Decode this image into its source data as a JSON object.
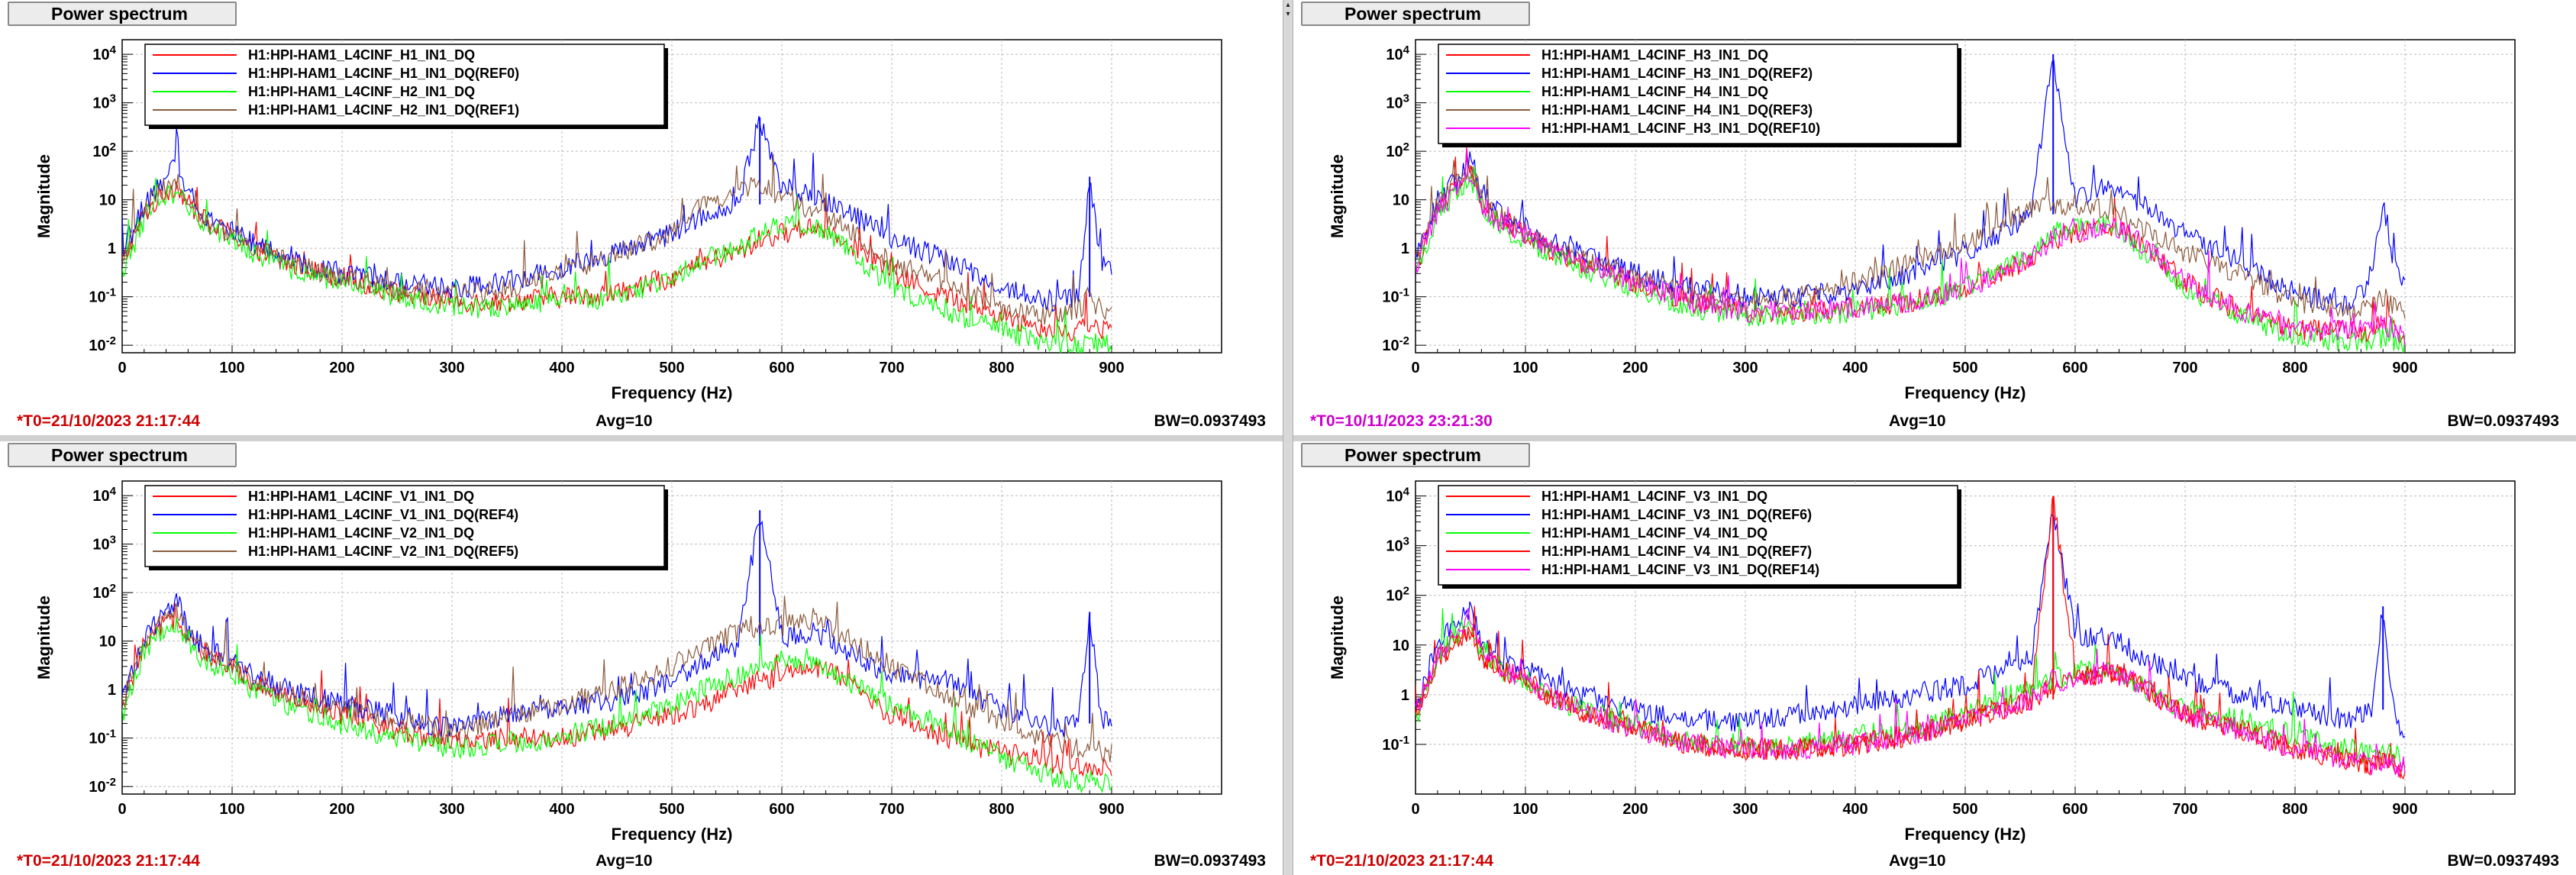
{
  "window": {
    "tab_label": "Power spectrum"
  },
  "colors": {
    "red": "#ff0000",
    "blue": "#0000ff",
    "green": "#00ff00",
    "brown": "#8b5a3c",
    "magenta": "#ff00ff"
  },
  "panels": [
    {
      "title": "Power spectrum",
      "t0": "*T0=21/10/2023 21:17:44",
      "t0_color": "#cc0000",
      "avg": "Avg=10",
      "bw": "BW=0.0937493",
      "legend": [
        {
          "name": "H1:HPI-HAM1_L4CINF_H1_IN1_DQ",
          "color": "#ff0000"
        },
        {
          "name": "H1:HPI-HAM1_L4CINF_H1_IN1_DQ(REF0)",
          "color": "#0000ff"
        },
        {
          "name": "H1:HPI-HAM1_L4CINF_H2_IN1_DQ",
          "color": "#00ff00"
        },
        {
          "name": "H1:HPI-HAM1_L4CINF_H2_IN1_DQ(REF1)",
          "color": "#8b5a3c"
        }
      ]
    },
    {
      "title": "Power spectrum",
      "t0": "*T0=10/11/2023 23:21:30",
      "t0_color": "#cc00cc",
      "avg": "Avg=10",
      "bw": "BW=0.0937493",
      "legend": [
        {
          "name": "H1:HPI-HAM1_L4CINF_H3_IN1_DQ",
          "color": "#ff0000"
        },
        {
          "name": "H1:HPI-HAM1_L4CINF_H3_IN1_DQ(REF2)",
          "color": "#0000ff"
        },
        {
          "name": "H1:HPI-HAM1_L4CINF_H4_IN1_DQ",
          "color": "#00ff00"
        },
        {
          "name": "H1:HPI-HAM1_L4CINF_H4_IN1_DQ(REF3)",
          "color": "#8b5a3c"
        },
        {
          "name": "H1:HPI-HAM1_L4CINF_H3_IN1_DQ(REF10)",
          "color": "#ff00ff"
        }
      ]
    },
    {
      "title": "Power spectrum",
      "t0": "*T0=21/10/2023 21:17:44",
      "t0_color": "#cc0000",
      "avg": "Avg=10",
      "bw": "BW=0.0937493",
      "legend": [
        {
          "name": "H1:HPI-HAM1_L4CINF_V1_IN1_DQ",
          "color": "#ff0000"
        },
        {
          "name": "H1:HPI-HAM1_L4CINF_V1_IN1_DQ(REF4)",
          "color": "#0000ff"
        },
        {
          "name": "H1:HPI-HAM1_L4CINF_V2_IN1_DQ",
          "color": "#00ff00"
        },
        {
          "name": "H1:HPI-HAM1_L4CINF_V2_IN1_DQ(REF5)",
          "color": "#8b5a3c"
        }
      ]
    },
    {
      "title": "Power spectrum",
      "t0": "*T0=21/10/2023 21:17:44",
      "t0_color": "#cc0000",
      "avg": "Avg=10",
      "bw": "BW=0.0937493",
      "legend": [
        {
          "name": "H1:HPI-HAM1_L4CINF_V3_IN1_DQ",
          "color": "#ff0000"
        },
        {
          "name": "H1:HPI-HAM1_L4CINF_V3_IN1_DQ(REF6)",
          "color": "#0000ff"
        },
        {
          "name": "H1:HPI-HAM1_L4CINF_V4_IN1_DQ",
          "color": "#00ff00"
        },
        {
          "name": "H1:HPI-HAM1_L4CINF_V4_IN1_DQ(REF7)",
          "color": "#ff0000"
        },
        {
          "name": "H1:HPI-HAM1_L4CINF_V3_IN1_DQ(REF14)",
          "color": "#ff00ff"
        }
      ]
    }
  ],
  "chart_data": [
    {
      "type": "line",
      "xlabel": "Frequency (Hz)",
      "ylabel": "Magnitude",
      "xlim": [
        0,
        1000
      ],
      "ylim": [
        0.007,
        20000
      ],
      "yscale": "log",
      "grid": true,
      "legend_position": "top-left",
      "xticks": [
        "0",
        "100",
        "200",
        "300",
        "400",
        "500",
        "600",
        "700",
        "800",
        "900"
      ],
      "yticks": [
        "10^-2",
        "10^-1",
        "1",
        "10",
        "10^2",
        "10^3",
        "10^4"
      ],
      "x": [
        0,
        20,
        40,
        50,
        60,
        80,
        100,
        120,
        150,
        200,
        250,
        300,
        350,
        400,
        450,
        500,
        530,
        560,
        580,
        600,
        630,
        650,
        700,
        750,
        800,
        850,
        870,
        880,
        890,
        900
      ],
      "series": [
        {
          "name": "H1:HPI-HAM1_L4CINF_H1_IN1_DQ",
          "color": "#ff0000",
          "values": [
            0.5,
            5,
            15,
            20,
            8,
            3,
            2,
            1,
            0.5,
            0.25,
            0.12,
            0.08,
            0.08,
            0.1,
            0.12,
            0.25,
            0.5,
            0.8,
            1.5,
            2,
            3,
            2,
            0.3,
            0.1,
            0.04,
            0.02,
            0.02,
            0.03,
            0.02,
            0.02
          ]
        },
        {
          "name": "H1:HPI-HAM1_L4CINF_H1_IN1_DQ(REF0)",
          "color": "#0000ff",
          "values": [
            0.6,
            8,
            25,
            60,
            15,
            4,
            2.5,
            1.2,
            0.6,
            0.3,
            0.2,
            0.15,
            0.2,
            0.4,
            0.8,
            2,
            5,
            8,
            500,
            15,
            12,
            8,
            1.5,
            0.6,
            0.15,
            0.08,
            0.1,
            30,
            0.6,
            0.3
          ]
        },
        {
          "name": "H1:HPI-HAM1_L4CINF_H2_IN1_DQ",
          "color": "#00ff00",
          "values": [
            0.3,
            4,
            12,
            15,
            6,
            2.5,
            1.5,
            0.8,
            0.4,
            0.2,
            0.1,
            0.06,
            0.06,
            0.08,
            0.1,
            0.25,
            0.6,
            1,
            2,
            3,
            3,
            1.5,
            0.15,
            0.05,
            0.02,
            0.01,
            0.01,
            0.012,
            0.01,
            0.01
          ]
        },
        {
          "name": "H1:HPI-HAM1_L4CINF_H2_IN1_DQ(REF1)",
          "color": "#8b5a3c",
          "values": [
            0.5,
            6,
            18,
            25,
            10,
            3,
            2,
            1,
            0.5,
            0.25,
            0.15,
            0.1,
            0.15,
            0.3,
            0.8,
            2,
            8,
            15,
            20,
            12,
            6,
            4,
            0.5,
            0.2,
            0.06,
            0.04,
            0.05,
            0.1,
            0.05,
            0.05
          ]
        }
      ]
    },
    {
      "type": "line",
      "xlabel": "Frequency (Hz)",
      "ylabel": "Magnitude",
      "xlim": [
        0,
        1000
      ],
      "ylim": [
        0.007,
        20000
      ],
      "yscale": "log",
      "grid": true,
      "legend_position": "top-left",
      "xticks": [
        "0",
        "100",
        "200",
        "300",
        "400",
        "500",
        "600",
        "700",
        "800",
        "900"
      ],
      "yticks": [
        "10^-2",
        "10^-1",
        "1",
        "10",
        "10^2",
        "10^3",
        "10^4"
      ],
      "x": [
        0,
        20,
        40,
        50,
        60,
        80,
        100,
        120,
        150,
        200,
        250,
        300,
        350,
        400,
        450,
        500,
        530,
        560,
        580,
        600,
        630,
        650,
        700,
        750,
        800,
        850,
        870,
        880,
        890,
        900
      ],
      "series": [
        {
          "name": "H1:HPI-HAM1_L4CINF_H3_IN1_DQ",
          "color": "#ff0000",
          "values": [
            0.4,
            6,
            20,
            40,
            8,
            3,
            2,
            1,
            0.5,
            0.2,
            0.08,
            0.05,
            0.05,
            0.06,
            0.08,
            0.15,
            0.3,
            0.6,
            1.5,
            2,
            3,
            2,
            0.2,
            0.05,
            0.02,
            0.02,
            0.02,
            0.03,
            0.02,
            0.015
          ]
        },
        {
          "name": "H1:HPI-HAM1_L4CINF_H3_IN1_DQ(REF2)",
          "color": "#0000ff",
          "values": [
            0.6,
            10,
            30,
            80,
            15,
            5,
            3,
            1.5,
            0.8,
            0.3,
            0.15,
            0.1,
            0.1,
            0.15,
            0.3,
            0.8,
            2,
            5,
            10000,
            10,
            20,
            12,
            2,
            0.5,
            0.12,
            0.06,
            0.3,
            10,
            0.5,
            0.15
          ]
        },
        {
          "name": "H1:HPI-HAM1_L4CINF_H4_IN1_DQ",
          "color": "#00ff00",
          "values": [
            0.3,
            5,
            15,
            30,
            6,
            2.5,
            1.5,
            0.8,
            0.4,
            0.15,
            0.06,
            0.04,
            0.04,
            0.05,
            0.07,
            0.15,
            0.4,
            0.8,
            2,
            3,
            3,
            1.5,
            0.15,
            0.04,
            0.015,
            0.012,
            0.012,
            0.015,
            0.012,
            0.01
          ]
        },
        {
          "name": "H1:HPI-HAM1_L4CINF_H4_IN1_DQ(REF3)",
          "color": "#8b5a3c",
          "values": [
            0.5,
            8,
            25,
            50,
            10,
            4,
            2,
            1,
            0.6,
            0.25,
            0.12,
            0.08,
            0.1,
            0.2,
            0.5,
            1.2,
            3,
            6,
            8,
            8,
            6,
            4,
            0.8,
            0.3,
            0.08,
            0.05,
            0.06,
            0.1,
            0.06,
            0.05
          ]
        },
        {
          "name": "H1:HPI-HAM1_L4CINF_H3_IN1_DQ(REF10)",
          "color": "#ff00ff",
          "values": [
            0.4,
            6,
            18,
            35,
            8,
            3,
            2,
            1,
            0.5,
            0.2,
            0.08,
            0.05,
            0.05,
            0.06,
            0.08,
            0.15,
            0.3,
            0.7,
            1.5,
            2,
            3,
            2,
            0.2,
            0.05,
            0.02,
            0.02,
            0.02,
            0.03,
            0.02,
            0.015
          ]
        }
      ]
    },
    {
      "type": "line",
      "xlabel": "Frequency (Hz)",
      "ylabel": "Magnitude",
      "xlim": [
        0,
        1000
      ],
      "ylim": [
        0.007,
        20000
      ],
      "yscale": "log",
      "grid": true,
      "legend_position": "top-left",
      "xticks": [
        "0",
        "100",
        "200",
        "300",
        "400",
        "500",
        "600",
        "700",
        "800",
        "900"
      ],
      "yticks": [
        "10^-2",
        "10^-1",
        "1",
        "10",
        "10^2",
        "10^3",
        "10^4"
      ],
      "x": [
        0,
        20,
        40,
        50,
        60,
        80,
        100,
        120,
        150,
        200,
        250,
        300,
        350,
        400,
        450,
        500,
        530,
        560,
        580,
        600,
        630,
        650,
        700,
        750,
        800,
        850,
        870,
        880,
        890,
        900
      ],
      "series": [
        {
          "name": "H1:HPI-HAM1_L4CINF_V1_IN1_DQ",
          "color": "#ff0000",
          "values": [
            0.4,
            8,
            25,
            30,
            10,
            4,
            3,
            1.5,
            0.8,
            0.3,
            0.15,
            0.08,
            0.1,
            0.1,
            0.15,
            0.3,
            0.5,
            1,
            1.5,
            2,
            3,
            2,
            0.3,
            0.1,
            0.05,
            0.03,
            0.025,
            0.03,
            0.025,
            0.02
          ]
        },
        {
          "name": "H1:HPI-HAM1_L4CINF_V1_IN1_DQ(REF4)",
          "color": "#0000ff",
          "values": [
            0.6,
            12,
            40,
            80,
            15,
            6,
            4,
            2,
            1,
            0.5,
            0.3,
            0.15,
            0.3,
            0.4,
            0.6,
            1.5,
            4,
            8,
            5000,
            12,
            15,
            8,
            2,
            1.5,
            0.4,
            0.15,
            0.2,
            40,
            0.3,
            0.15
          ]
        },
        {
          "name": "H1:HPI-HAM1_L4CINF_V2_IN1_DQ",
          "color": "#00ff00",
          "values": [
            0.3,
            6,
            20,
            25,
            8,
            3,
            2,
            1,
            0.5,
            0.2,
            0.1,
            0.06,
            0.08,
            0.1,
            0.2,
            0.5,
            1,
            2,
            3,
            4,
            4,
            2,
            0.5,
            0.15,
            0.04,
            0.015,
            0.012,
            0.015,
            0.012,
            0.01
          ]
        },
        {
          "name": "H1:HPI-HAM1_L4CINF_V2_IN1_DQ(REF5)",
          "color": "#8b5a3c",
          "values": [
            0.5,
            10,
            30,
            50,
            12,
            5,
            3,
            1.5,
            0.8,
            0.4,
            0.25,
            0.12,
            0.3,
            0.5,
            1,
            3,
            8,
            15,
            20,
            20,
            30,
            15,
            3,
            0.8,
            0.2,
            0.08,
            0.06,
            0.08,
            0.05,
            0.05
          ]
        }
      ]
    },
    {
      "type": "line",
      "xlabel": "Frequency (Hz)",
      "ylabel": "Magnitude",
      "xlim": [
        0,
        1000
      ],
      "ylim": [
        0.01,
        20000
      ],
      "yscale": "log",
      "grid": true,
      "legend_position": "top-left",
      "xticks": [
        "0",
        "100",
        "200",
        "300",
        "400",
        "500",
        "600",
        "700",
        "800",
        "900"
      ],
      "yticks": [
        "10^-1",
        "1",
        "10",
        "10^2",
        "10^3",
        "10^4"
      ],
      "x": [
        0,
        20,
        40,
        50,
        60,
        80,
        100,
        120,
        150,
        200,
        250,
        300,
        350,
        400,
        450,
        500,
        530,
        560,
        580,
        600,
        630,
        650,
        700,
        750,
        800,
        850,
        870,
        880,
        890,
        900
      ],
      "series": [
        {
          "name": "H1:HPI-HAM1_L4CINF_V3_IN1_DQ",
          "color": "#ff0000",
          "values": [
            0.3,
            5,
            15,
            20,
            6,
            3,
            2,
            1,
            0.5,
            0.2,
            0.1,
            0.08,
            0.08,
            0.1,
            0.15,
            0.3,
            0.5,
            0.8,
            1.5,
            2,
            3,
            2,
            0.4,
            0.2,
            0.08,
            0.05,
            0.04,
            0.05,
            0.04,
            0.03
          ]
        },
        {
          "name": "H1:HPI-HAM1_L4CINF_V3_IN1_DQ(REF6)",
          "color": "#0000ff",
          "values": [
            0.6,
            10,
            30,
            60,
            12,
            5,
            3,
            2,
            1,
            0.5,
            0.3,
            0.3,
            0.4,
            0.6,
            1,
            1.5,
            3,
            5,
            5000,
            15,
            15,
            8,
            2,
            1,
            0.5,
            0.3,
            0.5,
            60,
            0.5,
            0.15
          ]
        },
        {
          "name": "H1:HPI-HAM1_L4CINF_V4_IN1_DQ",
          "color": "#00ff00",
          "values": [
            0.3,
            6,
            18,
            25,
            8,
            3,
            2,
            1,
            0.5,
            0.25,
            0.12,
            0.1,
            0.1,
            0.15,
            0.2,
            0.4,
            0.8,
            1.5,
            2,
            3,
            3,
            2,
            0.5,
            0.3,
            0.15,
            0.08,
            0.06,
            0.07,
            0.06,
            0.05
          ]
        },
        {
          "name": "H1:HPI-HAM1_L4CINF_V4_IN1_DQ(REF7)",
          "color": "#ff0000",
          "values": [
            0.3,
            5,
            15,
            20,
            6,
            3,
            2,
            1,
            0.5,
            0.2,
            0.1,
            0.08,
            0.08,
            0.1,
            0.15,
            0.3,
            0.5,
            0.8,
            10000,
            2,
            3,
            2,
            0.4,
            0.2,
            0.08,
            0.05,
            0.04,
            0.05,
            0.04,
            0.03
          ]
        },
        {
          "name": "H1:HPI-HAM1_L4CINF_V3_IN1_DQ(REF14)",
          "color": "#ff00ff",
          "values": [
            0.4,
            6,
            20,
            40,
            8,
            3,
            2,
            1,
            0.5,
            0.2,
            0.1,
            0.08,
            0.08,
            0.1,
            0.15,
            0.3,
            0.5,
            0.8,
            2,
            2,
            3,
            2,
            0.4,
            0.2,
            0.08,
            0.05,
            0.04,
            0.05,
            0.04,
            0.03
          ]
        }
      ]
    }
  ]
}
